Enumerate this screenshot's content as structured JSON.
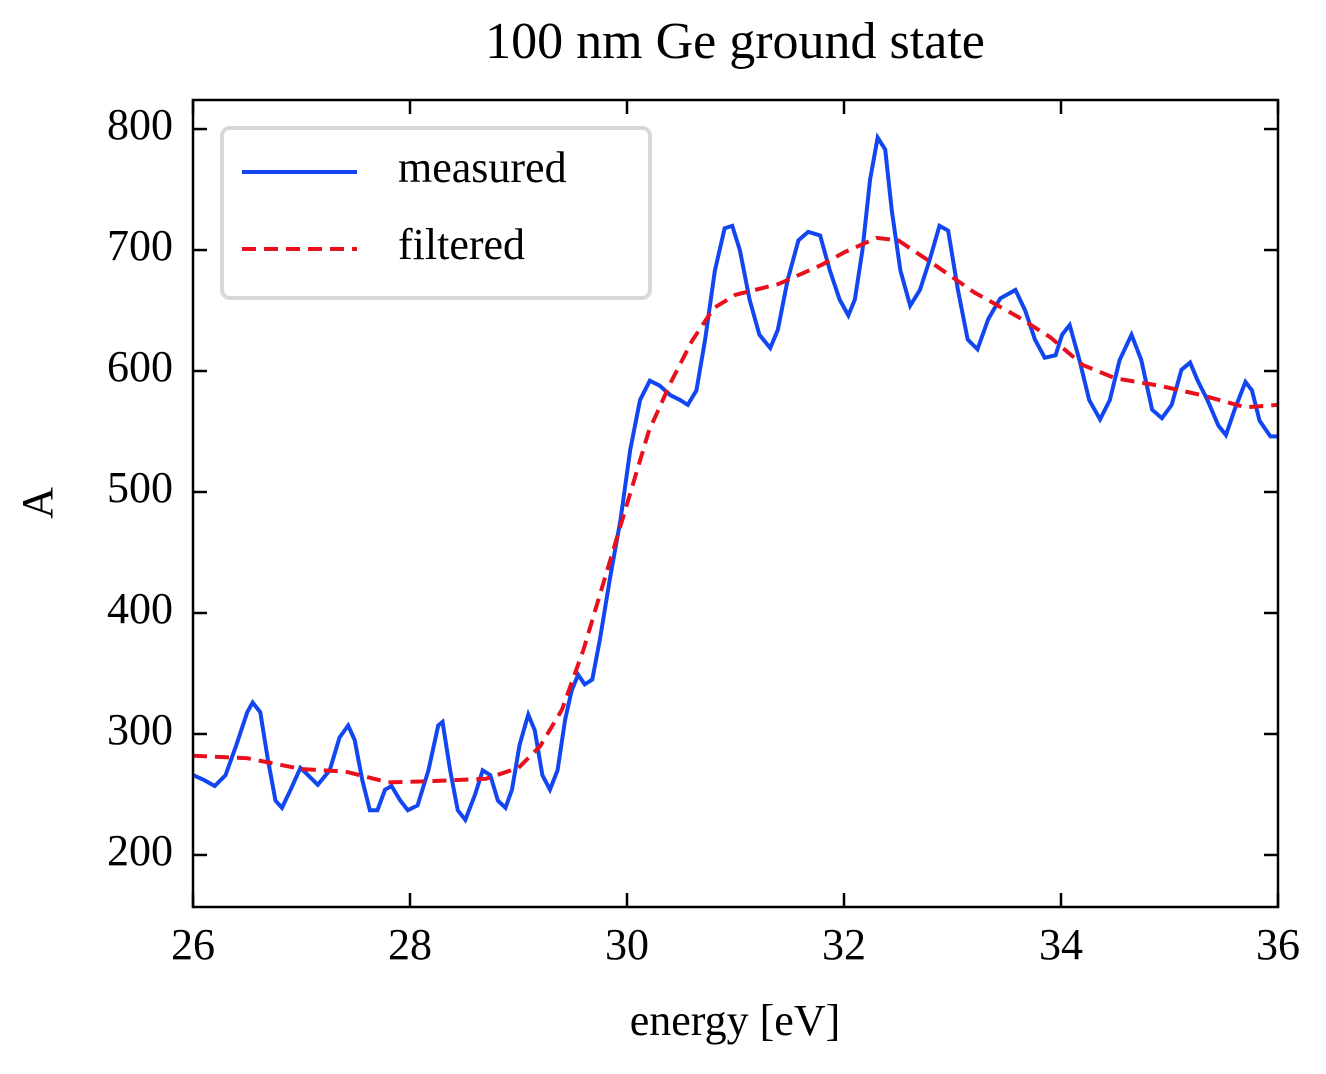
{
  "chart_data": {
    "type": "line",
    "title": "100 nm Ge ground state",
    "xlabel": "energy [eV]",
    "ylabel": "A",
    "xlim": [
      26,
      36
    ],
    "ylim": [
      157,
      824
    ],
    "xticks": [
      26,
      28,
      30,
      32,
      34,
      36
    ],
    "yticks": [
      200,
      300,
      400,
      500,
      600,
      700,
      800
    ],
    "legend": "upper left",
    "series": [
      {
        "name": "measured",
        "color": "#1246f0",
        "dash": "solid",
        "x": [
          26.0,
          26.1,
          26.2,
          26.3,
          26.4,
          26.5,
          26.55,
          26.62,
          26.69,
          26.76,
          26.82,
          26.9,
          26.99,
          27.06,
          27.15,
          27.26,
          27.35,
          27.43,
          27.49,
          27.56,
          27.63,
          27.7,
          27.77,
          27.83,
          27.91,
          27.98,
          28.07,
          28.17,
          28.26,
          28.3,
          28.37,
          28.44,
          28.51,
          28.6,
          28.67,
          28.74,
          28.81,
          28.88,
          28.94,
          29.01,
          29.09,
          29.15,
          29.22,
          29.29,
          29.36,
          29.43,
          29.49,
          29.55,
          29.61,
          29.68,
          29.75,
          29.84,
          29.94,
          30.03,
          30.12,
          30.21,
          30.3,
          30.4,
          30.49,
          30.56,
          30.64,
          30.72,
          30.81,
          30.9,
          30.97,
          31.04,
          31.13,
          31.22,
          31.32,
          31.39,
          31.48,
          31.58,
          31.67,
          31.78,
          31.87,
          31.96,
          32.04,
          32.1,
          32.17,
          32.24,
          32.31,
          32.38,
          32.44,
          32.52,
          32.61,
          32.7,
          32.79,
          32.88,
          32.96,
          33.05,
          33.14,
          33.23,
          33.33,
          33.44,
          33.58,
          33.67,
          33.76,
          33.85,
          33.95,
          34.01,
          34.08,
          34.17,
          34.26,
          34.36,
          34.45,
          34.54,
          34.65,
          34.74,
          34.84,
          34.93,
          35.02,
          35.11,
          35.19,
          35.26,
          35.35,
          35.45,
          35.52,
          35.6,
          35.7,
          35.76,
          35.83,
          35.93,
          36.0
        ],
        "values": [
          266,
          262,
          257,
          266,
          291,
          318,
          326,
          318,
          279,
          245,
          239,
          254,
          272,
          266,
          258,
          270,
          297,
          307,
          295,
          262,
          237,
          237,
          254,
          257,
          245,
          237,
          241,
          270,
          307,
          310,
          270,
          237,
          229,
          250,
          270,
          266,
          245,
          239,
          254,
          291,
          316,
          303,
          266,
          254,
          270,
          312,
          336,
          349,
          341,
          345,
          378,
          427,
          477,
          535,
          576,
          592,
          588,
          580,
          576,
          572,
          584,
          626,
          683,
          718,
          720,
          700,
          659,
          630,
          619,
          634,
          675,
          708,
          715,
          712,
          683,
          659,
          646,
          659,
          700,
          758,
          793,
          783,
          733,
          683,
          654,
          667,
          692,
          720,
          716,
          667,
          626,
          618,
          643,
          660,
          667,
          650,
          626,
          611,
          613,
          630,
          638,
          609,
          576,
          560,
          576,
          609,
          630,
          609,
          568,
          561,
          572,
          601,
          607,
          592,
          576,
          555,
          547,
          568,
          591,
          584,
          559,
          546,
          546
        ]
      },
      {
        "name": "filtered",
        "color": "#e8101c",
        "dash": "dashed",
        "x": [
          26.0,
          26.5,
          27.0,
          27.4,
          27.8,
          28.2,
          28.7,
          29.0,
          29.2,
          29.4,
          29.6,
          29.8,
          30.0,
          30.2,
          30.4,
          30.6,
          30.8,
          31.0,
          31.4,
          31.8,
          32.0,
          32.3,
          32.5,
          32.8,
          33.2,
          33.6,
          33.9,
          34.2,
          34.5,
          34.9,
          35.3,
          35.7,
          36.0
        ],
        "values": [
          282,
          280,
          271,
          269,
          260,
          261,
          263,
          272,
          290,
          320,
          370,
          430,
          490,
          550,
          590,
          625,
          652,
          663,
          672,
          688,
          698,
          710,
          708,
          690,
          665,
          645,
          628,
          605,
          594,
          588,
          580,
          570,
          572
        ]
      }
    ]
  }
}
